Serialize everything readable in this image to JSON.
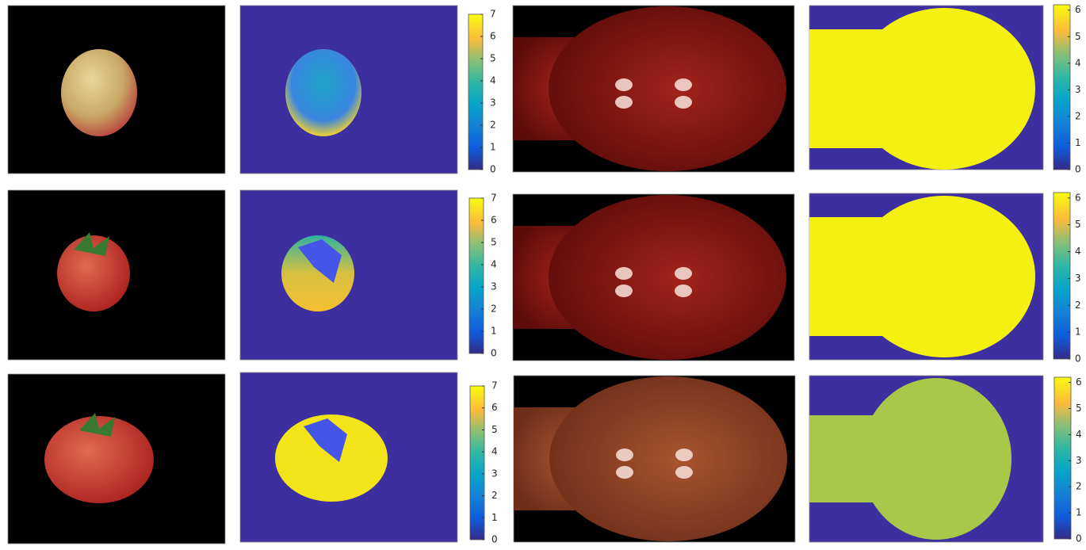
{
  "rows": [
    {
      "colorbar_left": {
        "clim": [
          0,
          7
        ],
        "ticks": [
          0,
          1,
          2,
          3,
          4,
          5,
          6,
          7
        ]
      },
      "colorbar_right": {
        "clim": [
          0,
          6.2
        ],
        "ticks": [
          0,
          1,
          2,
          3,
          4,
          5,
          6
        ]
      }
    },
    {
      "colorbar_left": {
        "clim": [
          0,
          7
        ],
        "ticks": [
          0,
          1,
          2,
          3,
          4,
          5,
          6,
          7
        ]
      },
      "colorbar_right": {
        "clim": [
          0,
          6.2
        ],
        "ticks": [
          0,
          1,
          2,
          3,
          4,
          5,
          6
        ]
      }
    },
    {
      "colorbar_left": {
        "clim": [
          0,
          7
        ],
        "ticks": [
          0,
          1,
          2,
          3,
          4,
          5,
          6,
          7
        ]
      },
      "colorbar_right": {
        "clim": [
          0,
          6.2
        ],
        "ticks": [
          0,
          1,
          2,
          3,
          4,
          5,
          6
        ]
      }
    }
  ]
}
